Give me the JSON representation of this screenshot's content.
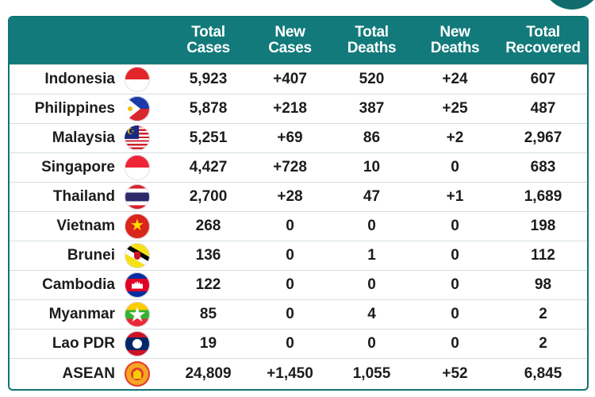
{
  "columns": {
    "total_cases": [
      "Total",
      "Cases"
    ],
    "new_cases": [
      "New",
      "Cases"
    ],
    "total_deaths": [
      "Total",
      "Deaths"
    ],
    "new_deaths": [
      "New",
      "Deaths"
    ],
    "total_recovered": [
      "Total",
      "Recovered"
    ]
  },
  "rows": [
    {
      "country": "Indonesia",
      "flag_icon": "indonesia-flag-icon",
      "total_cases": "5,923",
      "new_cases": "+407",
      "total_deaths": "520",
      "new_deaths": "+24",
      "total_recovered": "607"
    },
    {
      "country": "Philippines",
      "flag_icon": "philippines-flag-icon",
      "total_cases": "5,878",
      "new_cases": "+218",
      "total_deaths": "387",
      "new_deaths": "+25",
      "total_recovered": "487"
    },
    {
      "country": "Malaysia",
      "flag_icon": "malaysia-flag-icon",
      "total_cases": "5,251",
      "new_cases": "+69",
      "total_deaths": "86",
      "new_deaths": "+2",
      "total_recovered": "2,967"
    },
    {
      "country": "Singapore",
      "flag_icon": "singapore-flag-icon",
      "total_cases": "4,427",
      "new_cases": "+728",
      "total_deaths": "10",
      "new_deaths": "0",
      "total_recovered": "683"
    },
    {
      "country": "Thailand",
      "flag_icon": "thailand-flag-icon",
      "total_cases": "2,700",
      "new_cases": "+28",
      "total_deaths": "47",
      "new_deaths": "+1",
      "total_recovered": "1,689"
    },
    {
      "country": "Vietnam",
      "flag_icon": "vietnam-flag-icon",
      "total_cases": "268",
      "new_cases": "0",
      "total_deaths": "0",
      "new_deaths": "0",
      "total_recovered": "198"
    },
    {
      "country": "Brunei",
      "flag_icon": "brunei-flag-icon",
      "total_cases": "136",
      "new_cases": "0",
      "total_deaths": "1",
      "new_deaths": "0",
      "total_recovered": "112"
    },
    {
      "country": "Cambodia",
      "flag_icon": "cambodia-flag-icon",
      "total_cases": "122",
      "new_cases": "0",
      "total_deaths": "0",
      "new_deaths": "0",
      "total_recovered": "98"
    },
    {
      "country": "Myanmar",
      "flag_icon": "myanmar-flag-icon",
      "total_cases": "85",
      "new_cases": "0",
      "total_deaths": "4",
      "new_deaths": "0",
      "total_recovered": "2"
    },
    {
      "country": "Lao PDR",
      "flag_icon": "laos-flag-icon",
      "total_cases": "19",
      "new_cases": "0",
      "total_deaths": "0",
      "new_deaths": "0",
      "total_recovered": "2"
    },
    {
      "country": "ASEAN",
      "flag_icon": "asean-emblem-icon",
      "total_cases": "24,809",
      "new_cases": "+1,450",
      "total_deaths": "1,055",
      "new_deaths": "+52",
      "total_recovered": "6,845"
    }
  ],
  "colors": {
    "header_bg": "#137a7b",
    "border": "#0f7475",
    "text": "#1c1c1c"
  }
}
